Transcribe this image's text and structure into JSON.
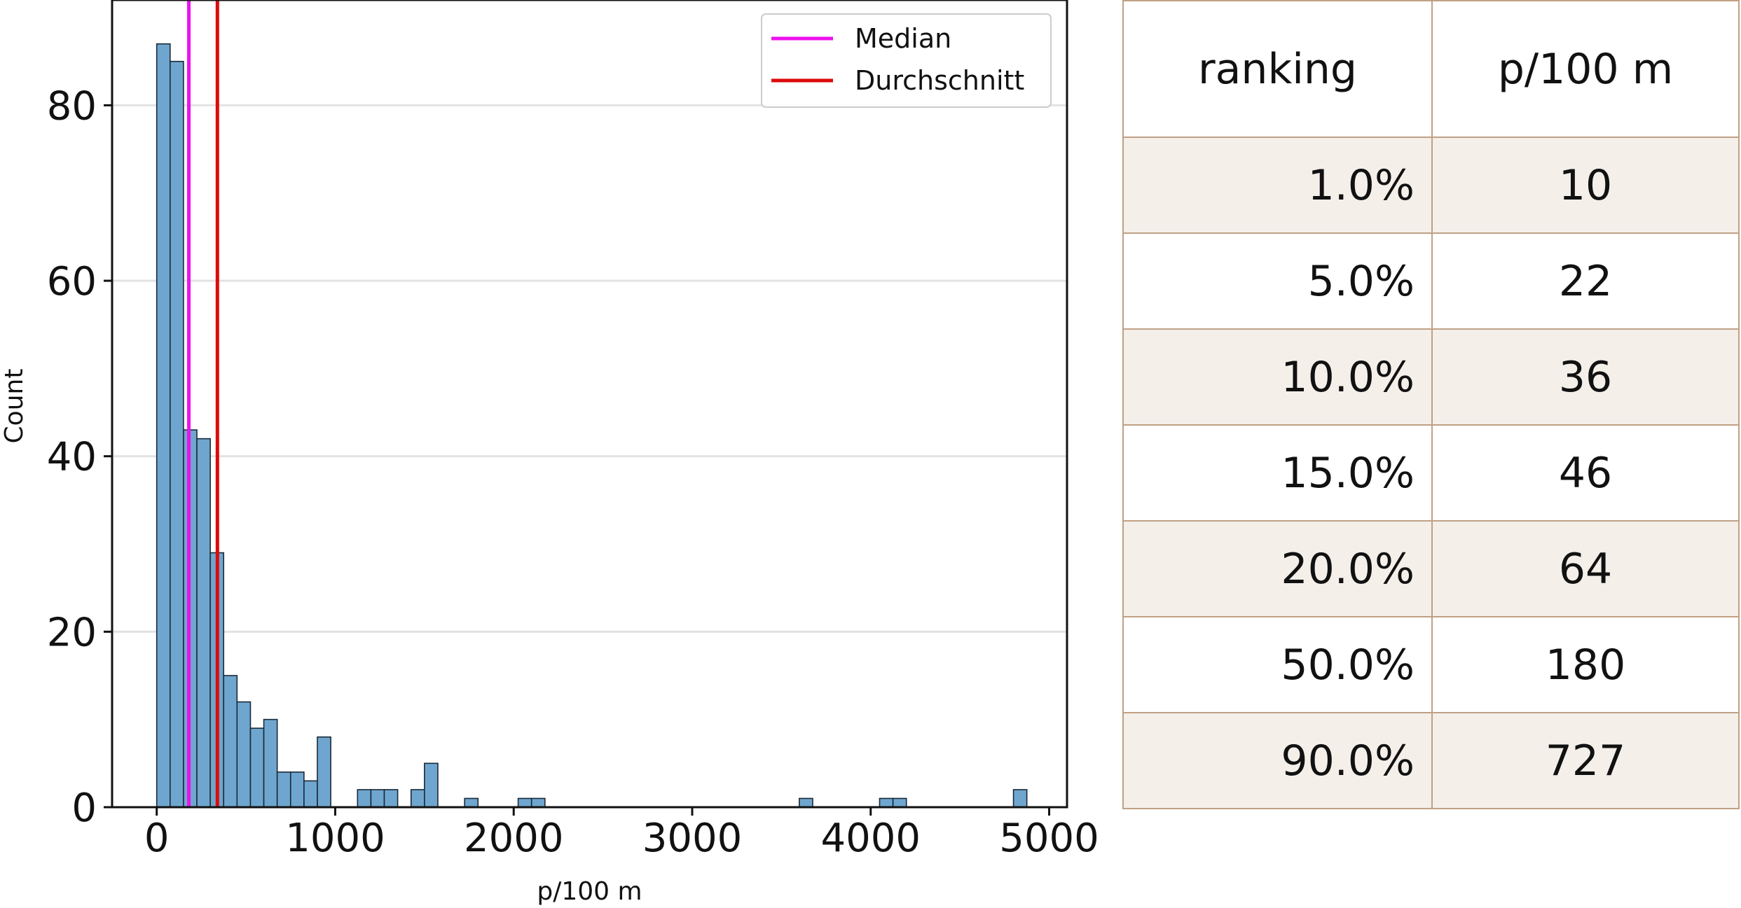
{
  "chart_data": {
    "type": "bar",
    "subtype": "histogram",
    "xlabel": "p/100 m",
    "ylabel": "Count",
    "xlim": [
      -250,
      5100
    ],
    "ylim": [
      0,
      92
    ],
    "xticks": [
      0,
      1000,
      2000,
      3000,
      4000,
      5000
    ],
    "yticks": [
      0,
      20,
      40,
      60,
      80
    ],
    "grid": "horizontal",
    "bin_width": 75,
    "bins_start": 0,
    "counts": [
      87,
      85,
      43,
      42,
      29,
      15,
      12,
      9,
      10,
      4,
      4,
      3,
      8,
      0,
      0,
      2,
      2,
      2,
      0,
      2,
      5,
      0,
      0,
      1,
      0,
      0,
      0,
      1,
      1,
      0,
      0,
      0,
      0,
      0,
      0,
      0,
      0,
      0,
      0,
      0,
      0,
      0,
      0,
      0,
      0,
      0,
      0,
      0,
      1,
      0,
      0,
      0,
      0,
      0,
      1,
      1,
      0,
      0,
      0,
      0,
      0,
      0,
      0,
      0,
      2
    ],
    "bar_color": "#6fa6cf",
    "bar_edge_color": "#1a2a38",
    "lines": [
      {
        "name": "Median",
        "x": 180,
        "color": "#ee10ee"
      },
      {
        "name": "Durchschnitt",
        "x": 340,
        "color": "#dd0a0a"
      }
    ],
    "legend": "top-right"
  },
  "table": {
    "headers": [
      "ranking",
      "p/100 m"
    ],
    "rows": [
      [
        "1.0%",
        "10"
      ],
      [
        "5.0%",
        "22"
      ],
      [
        "10.0%",
        "36"
      ],
      [
        "15.0%",
        "46"
      ],
      [
        "20.0%",
        "64"
      ],
      [
        "50.0%",
        "180"
      ],
      [
        "90.0%",
        "727"
      ]
    ]
  }
}
